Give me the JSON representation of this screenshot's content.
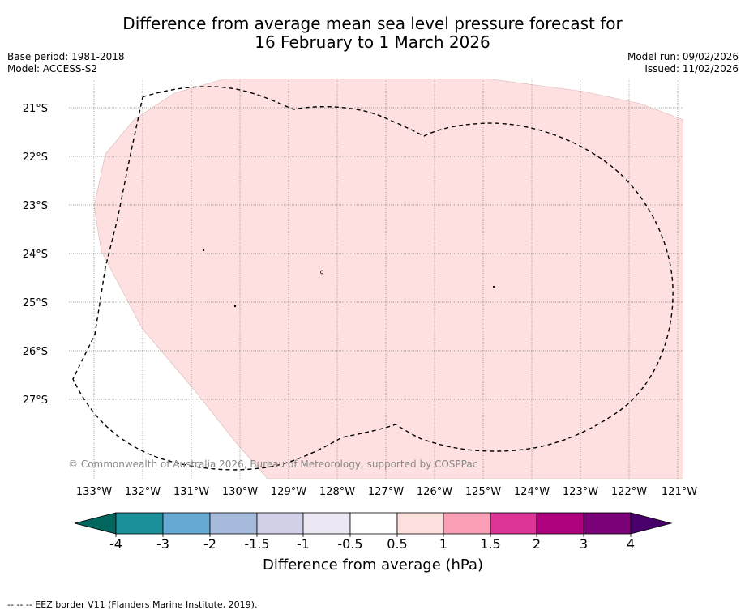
{
  "title": {
    "line1": "Difference from average mean sea level pressure forecast for",
    "line2": "16 February to 1 March 2026"
  },
  "meta": {
    "base_period": "Base period: 1981-2018",
    "model": "Model: ACCESS-S2",
    "model_run": "Model run: 09/02/2026",
    "issued": "Issued: 11/02/2026"
  },
  "map": {
    "latitude_labels": [
      "21°S",
      "22°S",
      "23°S",
      "24°S",
      "25°S",
      "26°S",
      "27°S"
    ],
    "longitude_labels": [
      "133°W",
      "132°W",
      "131°W",
      "130°W",
      "129°W",
      "128°W",
      "127°W",
      "126°W",
      "125°W",
      "124°W",
      "123°W",
      "122°W",
      "121°W"
    ],
    "anomaly_fill_color": "#fde0df",
    "anomaly_category": "0.5 to 1 hPa",
    "copyright": "© Commonwealth of Australia 2026, Bureau of Meteorology, supported by COSPPac"
  },
  "colorbar": {
    "ticks": [
      "-4",
      "-3",
      "-2",
      "-1.5",
      "-1",
      "-0.5",
      "0.5",
      "1",
      "1.5",
      "2",
      "3",
      "4"
    ],
    "colors": [
      "#1b8f9a",
      "#66a9d2",
      "#a6bbdb",
      "#d0d1e6",
      "#ece7f2",
      "#ffffff",
      "#fde0dd",
      "#fa9fb5",
      "#dd3497",
      "#ae017e",
      "#7a0177"
    ],
    "under_color": "#00665e",
    "over_color": "#49006a",
    "label": "Difference from average (hPa)"
  },
  "footer": {
    "legend": "--  --  -- EEZ border V11 (Flanders Marine Institute, 2019)."
  }
}
